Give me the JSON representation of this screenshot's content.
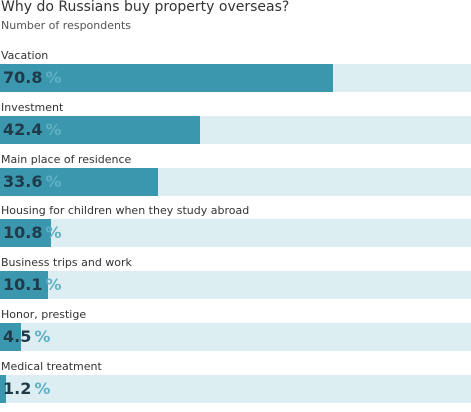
{
  "chart_data": {
    "type": "bar",
    "orientation": "horizontal",
    "title": "Why do Russians buy property overseas?",
    "subtitle": "Number of respondents",
    "unit": "%",
    "categories": [
      "Vacation",
      "Investment",
      "Main place of residence",
      "Housing for children when they study abroad",
      "Business trips and work",
      "Honor, prestige",
      "Medical treatment"
    ],
    "values": [
      70.8,
      42.4,
      33.6,
      10.8,
      10.1,
      4.5,
      1.2
    ],
    "value_labels": [
      "70.8",
      "42.4",
      "33.6",
      "10.8",
      "10.1",
      "4.5",
      "1.2"
    ],
    "xlim": [
      0,
      100
    ],
    "colors": {
      "bar": "#3a97ad",
      "track": "#ddeef3",
      "value_text": "#1f3b4a",
      "unit_text": "#5fb0c4"
    }
  }
}
